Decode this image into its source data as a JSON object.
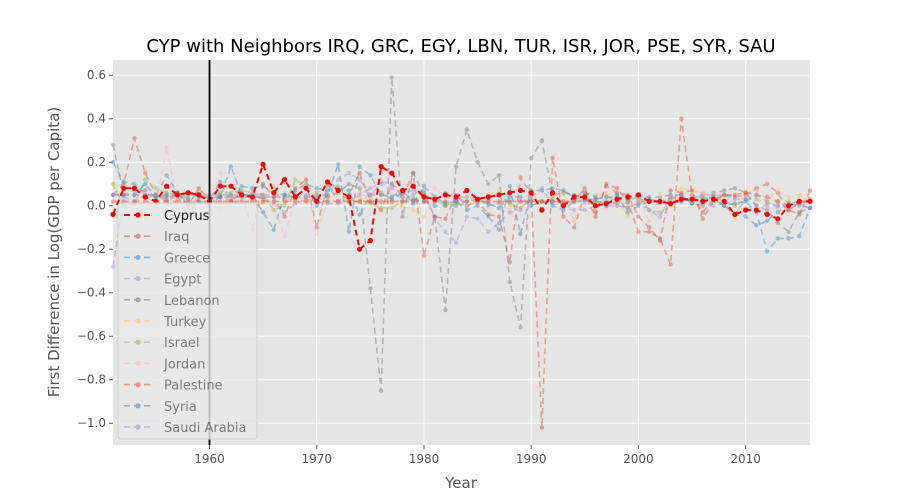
{
  "chart_data": {
    "type": "line",
    "title": "CYP with Neighbors IRQ, GRC, EGY, LBN, TUR, ISR, JOR, PSE, SYR, SAU",
    "xlabel": "Year",
    "ylabel": "First Difference in Log(GDP per Capita)",
    "xlim": [
      1951,
      2016
    ],
    "ylim": [
      -1.1,
      0.67
    ],
    "x_ticks": [
      1960,
      1970,
      1980,
      1990,
      2000,
      2010
    ],
    "y_ticks": [
      -1.0,
      -0.8,
      -0.6,
      -0.4,
      -0.2,
      0.0,
      0.2,
      0.4,
      0.6
    ],
    "x_tick_labels": [
      "1960",
      "1970",
      "1980",
      "1990",
      "2000",
      "2010"
    ],
    "y_tick_labels": [
      "−1.0",
      "−0.8",
      "−0.6",
      "−0.4",
      "−0.2",
      "0.0",
      "0.2",
      "0.4",
      "0.6"
    ],
    "vline_x": 1960,
    "grid": true,
    "legend_position": "lower-left",
    "x": [
      1951,
      1952,
      1953,
      1954,
      1955,
      1956,
      1957,
      1958,
      1959,
      1960,
      1961,
      1962,
      1963,
      1964,
      1965,
      1966,
      1967,
      1968,
      1969,
      1970,
      1971,
      1972,
      1973,
      1974,
      1975,
      1976,
      1977,
      1978,
      1979,
      1980,
      1981,
      1982,
      1983,
      1984,
      1985,
      1986,
      1987,
      1988,
      1989,
      1990,
      1991,
      1992,
      1993,
      1994,
      1995,
      1996,
      1997,
      1998,
      1999,
      2000,
      2001,
      2002,
      2003,
      2004,
      2005,
      2006,
      2007,
      2008,
      2009,
      2010,
      2011,
      2012,
      2013,
      2014,
      2015,
      2016
    ],
    "series": [
      {
        "name": "Cyprus",
        "color": "#ff0000",
        "highlight": true,
        "values": [
          -0.04,
          0.08,
          0.08,
          0.04,
          0.02,
          0.09,
          0.05,
          0.06,
          0.05,
          0.02,
          0.09,
          0.09,
          0.05,
          0.04,
          0.19,
          0.06,
          0.12,
          0.04,
          0.08,
          0.02,
          0.11,
          0.07,
          0.04,
          -0.2,
          -0.16,
          0.18,
          0.15,
          0.07,
          0.09,
          0.04,
          0.03,
          0.05,
          0.04,
          0.07,
          0.03,
          0.04,
          0.05,
          0.06,
          0.07,
          0.06,
          -0.02,
          0.06,
          0.0,
          0.04,
          0.04,
          0.0,
          0.01,
          0.03,
          0.04,
          0.05,
          0.02,
          0.02,
          0.01,
          0.03,
          0.03,
          0.02,
          0.03,
          0.02,
          -0.04,
          -0.02,
          -0.02,
          -0.04,
          -0.06,
          0.0,
          0.02,
          0.02
        ]
      },
      {
        "name": "Iraq",
        "color": "#e24a33",
        "values": [
          0.05,
          0.1,
          0.31,
          0.15,
          0.05,
          0.02,
          0.06,
          0.0,
          0.08,
          0.03,
          0.05,
          0.02,
          0.06,
          -0.11,
          0.1,
          0.04,
          -0.05,
          0.08,
          0.12,
          -0.1,
          0.1,
          0.02,
          0.05,
          0.15,
          0.02,
          -0.02,
          0.1,
          0.04,
          0.15,
          -0.23,
          -0.05,
          -0.06,
          0.05,
          0.0,
          0.02,
          -0.04,
          -0.05,
          -0.26,
          0.13,
          0.05,
          -1.02,
          0.22,
          -0.05,
          -0.1,
          0.05,
          -0.05,
          0.1,
          0.08,
          0.02,
          -0.12,
          -0.12,
          -0.15,
          -0.27,
          0.4,
          0.05,
          -0.03,
          0.03,
          0.05,
          0.04,
          0.05,
          0.08,
          0.1,
          0.06,
          -0.02,
          -0.04,
          0.07
        ]
      },
      {
        "name": "Greece",
        "color": "#348abd",
        "values": [
          0.2,
          0.11,
          0.1,
          0.05,
          0.05,
          0.14,
          0.06,
          0.03,
          0.05,
          0.03,
          0.11,
          0.02,
          0.09,
          0.08,
          0.09,
          0.06,
          0.05,
          0.07,
          0.1,
          0.08,
          0.07,
          0.08,
          0.07,
          -0.04,
          0.05,
          0.06,
          0.03,
          0.06,
          0.03,
          0.02,
          0.0,
          0.0,
          0.0,
          0.02,
          0.03,
          0.01,
          -0.01,
          0.04,
          0.04,
          0.0,
          0.02,
          0.0,
          -0.02,
          0.02,
          0.02,
          0.03,
          0.04,
          0.03,
          0.03,
          0.04,
          0.04,
          0.04,
          0.05,
          0.05,
          0.01,
          0.05,
          0.03,
          0.0,
          -0.04,
          -0.05,
          -0.09,
          -0.07,
          -0.03,
          0.01,
          0.0,
          -0.01
        ]
      },
      {
        "name": "Egypt",
        "color": "#988ed5",
        "values": [
          -0.28,
          0.04,
          0.02,
          0.05,
          0.04,
          0.03,
          0.04,
          0.06,
          0.04,
          0.02,
          0.04,
          0.05,
          0.04,
          0.05,
          0.03,
          0.01,
          -0.03,
          0.01,
          0.03,
          0.02,
          0.01,
          0.01,
          0.02,
          0.05,
          0.08,
          0.11,
          0.1,
          0.06,
          0.07,
          0.06,
          0.02,
          0.06,
          0.04,
          0.04,
          0.03,
          0.0,
          0.01,
          0.02,
          0.02,
          0.02,
          0.02,
          0.02,
          0.01,
          0.02,
          0.03,
          0.03,
          0.04,
          0.04,
          0.04,
          0.03,
          0.02,
          0.01,
          0.01,
          0.02,
          0.03,
          0.05,
          0.05,
          0.05,
          0.03,
          0.03,
          0.0,
          0.0,
          0.0,
          0.01,
          0.02,
          0.02
        ]
      },
      {
        "name": "Lebanon",
        "color": "#777777",
        "values": [
          0.28,
          0.05,
          0.07,
          0.07,
          0.04,
          0.04,
          0.05,
          -0.05,
          0.04,
          0.04,
          0.04,
          0.04,
          0.04,
          0.04,
          0.04,
          0.04,
          0.04,
          0.04,
          0.04,
          0.04,
          0.04,
          0.06,
          0.1,
          0.08,
          -0.38,
          -0.85,
          0.59,
          -0.05,
          0.15,
          0.05,
          -0.05,
          -0.48,
          0.18,
          0.35,
          0.2,
          0.1,
          0.14,
          -0.35,
          -0.56,
          0.22,
          0.3,
          0.05,
          0.06,
          0.05,
          0.03,
          0.02,
          0.02,
          0.01,
          -0.01,
          0.01,
          0.03,
          0.02,
          0.03,
          0.05,
          0.01,
          0.0,
          0.06,
          0.07,
          0.08,
          0.06,
          0.0,
          -0.02,
          -0.08,
          -0.12,
          -0.03,
          -0.01
        ]
      },
      {
        "name": "Turkey",
        "color": "#fbc15e",
        "values": [
          0.1,
          0.08,
          0.08,
          -0.05,
          0.05,
          0.02,
          0.04,
          0.02,
          0.02,
          0.0,
          -0.01,
          0.04,
          0.06,
          0.02,
          0.01,
          0.09,
          0.02,
          0.04,
          0.02,
          0.03,
          0.03,
          0.06,
          0.02,
          0.03,
          0.04,
          0.06,
          0.01,
          0.0,
          -0.02,
          -0.05,
          0.03,
          0.01,
          0.02,
          0.04,
          0.02,
          0.05,
          0.07,
          0.0,
          -0.01,
          0.07,
          -0.01,
          0.04,
          0.06,
          -0.07,
          0.06,
          0.05,
          0.06,
          0.02,
          -0.05,
          0.05,
          -0.07,
          0.05,
          0.04,
          0.08,
          0.07,
          0.06,
          0.03,
          0.0,
          -0.06,
          0.07,
          0.07,
          0.03,
          0.07,
          0.04,
          0.05,
          0.02
        ]
      },
      {
        "name": "Israel",
        "color": "#8eba42",
        "values": [
          0.1,
          0.0,
          0.01,
          0.12,
          0.08,
          0.06,
          0.05,
          0.04,
          0.07,
          0.04,
          0.06,
          0.06,
          0.07,
          0.06,
          0.05,
          -0.02,
          0.0,
          0.12,
          0.09,
          0.06,
          0.09,
          0.09,
          0.02,
          0.02,
          0.01,
          -0.01,
          -0.01,
          0.02,
          0.03,
          0.05,
          0.03,
          0.0,
          0.01,
          0.0,
          0.02,
          0.02,
          0.05,
          0.01,
          -0.01,
          0.03,
          0.02,
          0.03,
          0.01,
          0.03,
          0.04,
          0.02,
          0.01,
          0.02,
          0.01,
          0.05,
          -0.02,
          -0.03,
          0.0,
          0.03,
          0.03,
          0.04,
          0.04,
          0.02,
          0.0,
          0.03,
          0.03,
          0.01,
          0.02,
          0.02,
          0.01,
          0.02
        ]
      },
      {
        "name": "Jordan",
        "color": "#ffb5b8",
        "values": [
          0.05,
          0.06,
          0.05,
          0.05,
          0.0,
          0.27,
          0.02,
          0.02,
          0.03,
          0.0,
          0.15,
          0.0,
          0.04,
          0.06,
          0.05,
          0.0,
          -0.14,
          0.03,
          0.1,
          -0.13,
          0.02,
          0.02,
          0.03,
          0.06,
          0.03,
          0.12,
          0.05,
          0.07,
          0.1,
          0.1,
          0.08,
          0.04,
          0.02,
          0.0,
          0.01,
          0.02,
          0.01,
          -0.02,
          -0.12,
          -0.05,
          -0.02,
          0.12,
          0.02,
          0.02,
          0.01,
          -0.02,
          -0.01,
          0.0,
          0.0,
          0.01,
          0.02,
          0.02,
          0.02,
          0.04,
          0.05,
          0.05,
          0.05,
          0.05,
          0.01,
          -0.01,
          -0.01,
          -0.01,
          -0.01,
          0.0,
          0.0,
          -0.01
        ]
      },
      {
        "name": "Palestine",
        "color": "#e24a33",
        "values": [
          0.02,
          0.02,
          0.02,
          0.02,
          0.02,
          0.02,
          0.02,
          0.02,
          0.02,
          0.02,
          0.02,
          0.02,
          0.02,
          0.02,
          0.02,
          0.02,
          0.02,
          0.02,
          0.02,
          0.02,
          0.02,
          0.02,
          0.02,
          0.02,
          0.02,
          0.02,
          0.02,
          0.02,
          0.02,
          0.02,
          0.02,
          0.02,
          0.02,
          0.02,
          0.02,
          0.02,
          0.02,
          0.02,
          0.02,
          0.02,
          0.02,
          0.02,
          0.02,
          0.02,
          0.08,
          -0.03,
          0.09,
          0.06,
          0.05,
          -0.05,
          -0.1,
          -0.16,
          0.07,
          0.06,
          0.07,
          -0.06,
          0.02,
          0.05,
          0.05,
          0.06,
          0.05,
          0.04,
          0.02,
          -0.02,
          0.01,
          0.03
        ]
      },
      {
        "name": "Syria",
        "color": "#348abd",
        "values": [
          0.05,
          0.05,
          0.05,
          0.1,
          0.04,
          0.05,
          0.06,
          0.01,
          0.02,
          0.01,
          0.04,
          0.18,
          0.05,
          0.05,
          -0.03,
          -0.11,
          0.05,
          0.04,
          0.08,
          0.0,
          0.05,
          0.19,
          -0.12,
          0.18,
          0.14,
          0.05,
          0.04,
          0.07,
          0.01,
          0.09,
          0.04,
          0.01,
          0.02,
          -0.02,
          0.0,
          -0.05,
          -0.11,
          0.09,
          -0.13,
          0.07,
          0.07,
          0.08,
          0.07,
          0.04,
          0.06,
          0.04,
          0.0,
          0.05,
          -0.03,
          0.0,
          0.02,
          0.02,
          0.01,
          0.02,
          0.03,
          0.03,
          0.04,
          0.0,
          0.01,
          0.02,
          -0.03,
          -0.21,
          -0.15,
          -0.15,
          -0.14,
          -0.01
        ]
      },
      {
        "name": "Saudi Arabia",
        "color": "#988ed5",
        "values": [
          0.05,
          0.05,
          0.05,
          0.05,
          0.05,
          0.05,
          0.05,
          0.05,
          0.05,
          0.05,
          0.05,
          0.05,
          0.05,
          0.05,
          0.05,
          0.05,
          0.05,
          0.05,
          0.05,
          0.05,
          0.05,
          0.12,
          0.15,
          0.12,
          0.05,
          0.1,
          0.08,
          0.02,
          0.05,
          0.07,
          -0.06,
          -0.12,
          -0.17,
          -0.05,
          -0.06,
          -0.12,
          -0.08,
          -0.03,
          -0.02,
          0.04,
          0.08,
          0.01,
          -0.01,
          -0.02,
          -0.02,
          0.0,
          0.0,
          0.0,
          -0.01,
          0.02,
          -0.02,
          -0.05,
          0.04,
          0.04,
          0.03,
          0.01,
          0.0,
          0.01,
          -0.04,
          0.03,
          0.05,
          0.02,
          0.0,
          0.0,
          0.01,
          -0.01
        ]
      }
    ]
  }
}
